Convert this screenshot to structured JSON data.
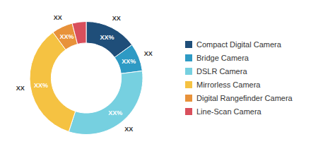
{
  "chart_data": {
    "type": "donut",
    "categories": [
      "Compact Digital Camera",
      "Bridge Camera",
      "DSLR Camera",
      "Mirrorless Camera",
      "Digital Rangefinder Camera",
      "Line-Scan Camera"
    ],
    "values": [
      15,
      8,
      32,
      35,
      6,
      4
    ],
    "value_labels": [
      "XX%",
      "XX%",
      "XX%",
      "XX%",
      "XX%",
      null
    ],
    "annotations": [
      "XX",
      "XX",
      "XX",
      "XX",
      "XX",
      null
    ],
    "colors": [
      "#1f4e79",
      "#2e9ac4",
      "#76d0e0",
      "#f5c242",
      "#e8923a",
      "#d94f5c"
    ],
    "data_labels": true,
    "legend": "right"
  }
}
